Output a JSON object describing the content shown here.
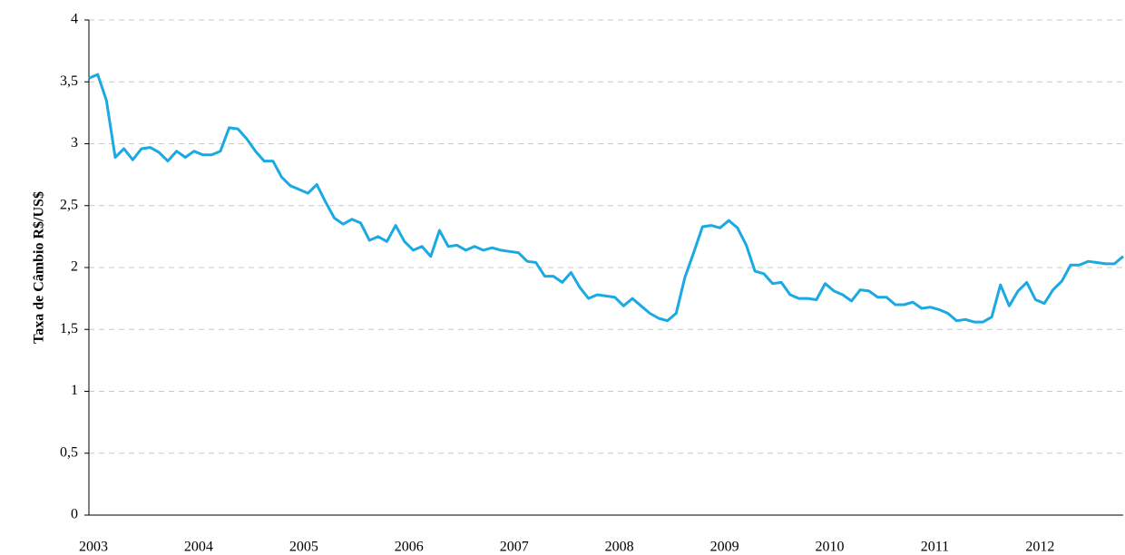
{
  "chart_data": {
    "type": "line",
    "y_label": "Taxa de Câmbio R$/US$",
    "categories": [
      "2003",
      null,
      null,
      null,
      null,
      null,
      null,
      null,
      null,
      null,
      null,
      null,
      "2004",
      null,
      null,
      null,
      null,
      null,
      null,
      null,
      null,
      null,
      null,
      null,
      "2005",
      null,
      null,
      null,
      null,
      null,
      null,
      null,
      null,
      null,
      null,
      null,
      "2006",
      null,
      null,
      null,
      null,
      null,
      null,
      null,
      null,
      null,
      null,
      null,
      "2007",
      null,
      null,
      null,
      null,
      null,
      null,
      null,
      null,
      null,
      null,
      null,
      "2008",
      null,
      null,
      null,
      null,
      null,
      null,
      null,
      null,
      null,
      null,
      null,
      "2009",
      null,
      null,
      null,
      null,
      null,
      null,
      null,
      null,
      null,
      null,
      null,
      "2010",
      null,
      null,
      null,
      null,
      null,
      null,
      null,
      null,
      null,
      null,
      null,
      "2011",
      null,
      null,
      null,
      null,
      null,
      null,
      null,
      null,
      null,
      null,
      null,
      "2012",
      null,
      null,
      null,
      null,
      null,
      null,
      null,
      null,
      null,
      null
    ],
    "series": [
      {
        "color": "#1aa9e3",
        "values": [
          3.53,
          3.56,
          3.35,
          2.89,
          2.96,
          2.87,
          2.96,
          2.97,
          2.93,
          2.86,
          2.94,
          2.89,
          2.94,
          2.91,
          2.91,
          2.94,
          3.13,
          3.12,
          3.04,
          2.94,
          2.86,
          2.86,
          2.73,
          2.66,
          2.63,
          2.6,
          2.67,
          2.53,
          2.4,
          2.35,
          2.39,
          2.36,
          2.22,
          2.25,
          2.21,
          2.34,
          2.21,
          2.14,
          2.17,
          2.09,
          2.3,
          2.17,
          2.18,
          2.14,
          2.17,
          2.14,
          2.16,
          2.14,
          2.13,
          2.12,
          2.05,
          2.04,
          1.93,
          1.93,
          1.88,
          1.96,
          1.84,
          1.75,
          1.78,
          1.77,
          1.76,
          1.69,
          1.75,
          1.69,
          1.63,
          1.59,
          1.57,
          1.63,
          1.92,
          2.12,
          2.33,
          2.34,
          2.32,
          2.38,
          2.32,
          2.18,
          1.97,
          1.95,
          1.87,
          1.88,
          1.78,
          1.75,
          1.75,
          1.74,
          1.87,
          1.81,
          1.78,
          1.73,
          1.82,
          1.81,
          1.76,
          1.76,
          1.7,
          1.7,
          1.72,
          1.67,
          1.68,
          1.66,
          1.63,
          1.57,
          1.58,
          1.56,
          1.56,
          1.6,
          1.86,
          1.69,
          1.81,
          1.88,
          1.74,
          1.71,
          1.82,
          1.89,
          2.02,
          2.02,
          2.05,
          2.04,
          2.03,
          2.03,
          2.09
        ]
      }
    ],
    "ylim": [
      0,
      4
    ],
    "yticks": [
      0,
      {
        "value": 0.5,
        "label": "0,5"
      },
      1,
      {
        "value": 1.5,
        "label": "1,5"
      },
      2,
      {
        "value": 2.5,
        "label": "2,5"
      },
      3,
      {
        "value": 3.5,
        "label": "3,5"
      },
      4
    ],
    "grid": true
  }
}
